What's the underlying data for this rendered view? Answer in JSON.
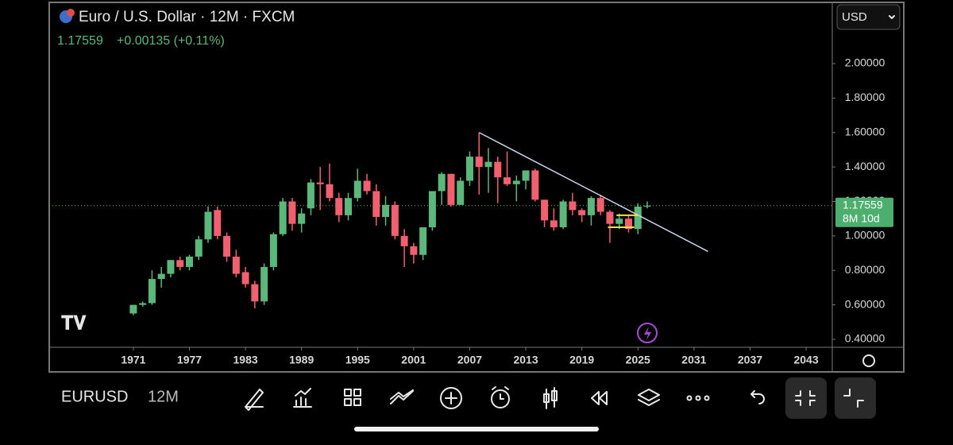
{
  "chart_data": {
    "type": "candlestick",
    "title": "Euro / U.S. Dollar · 12M · FXCM",
    "last_price": 1.17559,
    "x": [
      1971,
      1972,
      1973,
      1974,
      1975,
      1976,
      1977,
      1978,
      1979,
      1980,
      1981,
      1982,
      1983,
      1984,
      1985,
      1986,
      1987,
      1988,
      1989,
      1990,
      1991,
      1992,
      1993,
      1994,
      1995,
      1996,
      1997,
      1998,
      1999,
      2000,
      2001,
      2002,
      2003,
      2004,
      2005,
      2006,
      2007,
      2008,
      2009,
      2010,
      2011,
      2012,
      2013,
      2014,
      2015,
      2016,
      2017,
      2018,
      2019,
      2020,
      2021,
      2022,
      2023,
      2024,
      2025,
      2026
    ],
    "candles": [
      [
        0.55,
        0.6,
        0.54,
        0.6
      ],
      [
        0.6,
        0.62,
        0.59,
        0.61
      ],
      [
        0.61,
        0.8,
        0.6,
        0.75
      ],
      [
        0.75,
        0.82,
        0.7,
        0.78
      ],
      [
        0.78,
        0.86,
        0.76,
        0.86
      ],
      [
        0.86,
        0.88,
        0.8,
        0.82
      ],
      [
        0.82,
        0.89,
        0.8,
        0.88
      ],
      [
        0.88,
        1.0,
        0.86,
        0.98
      ],
      [
        0.98,
        1.17,
        0.96,
        1.14
      ],
      [
        1.15,
        1.17,
        0.98,
        1.0
      ],
      [
        1.0,
        1.02,
        0.85,
        0.88
      ],
      [
        0.88,
        0.92,
        0.76,
        0.78
      ],
      [
        0.79,
        0.82,
        0.7,
        0.72
      ],
      [
        0.72,
        0.74,
        0.58,
        0.62
      ],
      [
        0.62,
        0.84,
        0.6,
        0.82
      ],
      [
        0.82,
        1.02,
        0.8,
        1.01
      ],
      [
        1.01,
        1.22,
        1.0,
        1.2
      ],
      [
        1.2,
        1.22,
        1.03,
        1.07
      ],
      [
        1.07,
        1.16,
        1.02,
        1.13
      ],
      [
        1.16,
        1.33,
        1.12,
        1.31
      ],
      [
        1.31,
        1.4,
        1.15,
        1.3
      ],
      [
        1.3,
        1.42,
        1.2,
        1.22
      ],
      [
        1.22,
        1.25,
        1.08,
        1.12
      ],
      [
        1.12,
        1.25,
        1.09,
        1.22
      ],
      [
        1.22,
        1.39,
        1.2,
        1.32
      ],
      [
        1.32,
        1.36,
        1.24,
        1.26
      ],
      [
        1.26,
        1.3,
        1.06,
        1.11
      ],
      [
        1.11,
        1.23,
        1.06,
        1.18
      ],
      [
        1.18,
        1.2,
        0.98,
        1.0
      ],
      [
        1.0,
        1.04,
        0.82,
        0.94
      ],
      [
        0.94,
        0.96,
        0.84,
        0.89
      ],
      [
        0.89,
        1.05,
        0.86,
        1.05
      ],
      [
        1.05,
        1.26,
        1.03,
        1.26
      ],
      [
        1.26,
        1.37,
        1.18,
        1.36
      ],
      [
        1.36,
        1.36,
        1.17,
        1.18
      ],
      [
        1.18,
        1.34,
        1.18,
        1.32
      ],
      [
        1.32,
        1.49,
        1.29,
        1.46
      ],
      [
        1.46,
        1.6,
        1.24,
        1.4
      ],
      [
        1.4,
        1.51,
        1.25,
        1.43
      ],
      [
        1.43,
        1.46,
        1.19,
        1.34
      ],
      [
        1.34,
        1.49,
        1.29,
        1.3
      ],
      [
        1.3,
        1.35,
        1.2,
        1.32
      ],
      [
        1.32,
        1.38,
        1.27,
        1.38
      ],
      [
        1.38,
        1.39,
        1.2,
        1.21
      ],
      [
        1.21,
        1.21,
        1.05,
        1.09
      ],
      [
        1.09,
        1.16,
        1.03,
        1.05
      ],
      [
        1.05,
        1.21,
        1.04,
        1.2
      ],
      [
        1.2,
        1.25,
        1.12,
        1.15
      ],
      [
        1.15,
        1.16,
        1.08,
        1.12
      ],
      [
        1.12,
        1.23,
        1.06,
        1.22
      ],
      [
        1.22,
        1.24,
        1.12,
        1.14
      ],
      [
        1.14,
        1.15,
        0.96,
        1.07
      ],
      [
        1.07,
        1.13,
        1.04,
        1.1
      ],
      [
        1.1,
        1.12,
        1.02,
        1.04
      ],
      [
        1.04,
        1.19,
        1.01,
        1.17
      ],
      [
        1.17,
        1.2,
        1.16,
        1.17559
      ]
    ],
    "up_color": "#5cb87a",
    "down_color": "#f0606e",
    "trendline": {
      "x": [
        2008,
        2032.5
      ],
      "y": [
        1.6,
        0.91
      ],
      "color": "#c9d1ea"
    },
    "levels": [
      {
        "x": [
          2022.7,
          2025
        ],
        "y": 1.12,
        "color": "#f2e14c"
      },
      {
        "x": [
          2021.8,
          2024.6
        ],
        "y": 1.05,
        "color": "#f2e14c"
      }
    ],
    "xlim": [
      1962,
      2045.8
    ],
    "ylim": [
      0.354,
      2.355
    ],
    "xticks": [
      1971,
      1977,
      1983,
      1989,
      1995,
      2001,
      2007,
      2013,
      2019,
      2025,
      2031,
      2037,
      2043
    ],
    "yticks": [
      {
        "value": 0.4,
        "label": "0.40000"
      },
      {
        "value": 0.6,
        "label": "0.60000"
      },
      {
        "value": 0.8,
        "label": "0.80000"
      },
      {
        "value": 1,
        "label": "1.00000"
      },
      {
        "value": 1.2,
        "label": "1.20000"
      },
      {
        "value": 1.4,
        "label": "1.40000"
      },
      {
        "value": 1.6,
        "label": "1.60000"
      },
      {
        "value": 1.8,
        "label": "1.80000"
      },
      {
        "value": 2,
        "label": "2.00000"
      }
    ]
  },
  "ui": {
    "change": "+0.00135 (+0.11%)",
    "countdown": "8M 10d",
    "currency": "USD",
    "symbol": "EURUSD",
    "interval": "12M"
  }
}
